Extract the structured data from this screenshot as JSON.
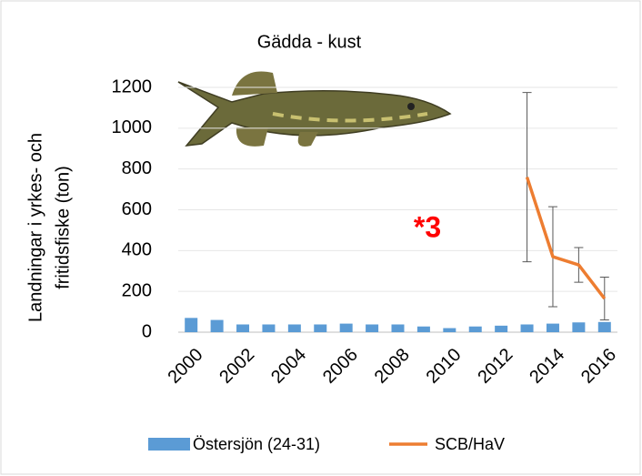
{
  "chart_data": {
    "type": "bar",
    "title": "Gädda - kust",
    "ylabel": [
      "Landningar i yrkes- och",
      "fritidsfiske (ton)"
    ],
    "annotation": "*3",
    "categories": [
      "2000",
      null,
      "2002",
      null,
      "2004",
      null,
      "2006",
      null,
      "2008",
      null,
      "2010",
      null,
      "2012",
      null,
      "2014",
      null,
      "2016"
    ],
    "series": [
      {
        "name": "Östersjön (24-31)",
        "type": "bar",
        "color": "#5b9bd5",
        "values": [
          70,
          60,
          38,
          38,
          38,
          38,
          42,
          38,
          38,
          28,
          20,
          28,
          32,
          38,
          42,
          48,
          50
        ]
      },
      {
        "name": "SCB/HaV",
        "type": "line",
        "color": "#ed7d31",
        "values": [
          null,
          null,
          null,
          null,
          null,
          null,
          null,
          null,
          null,
          null,
          null,
          null,
          null,
          760,
          370,
          330,
          165
        ],
        "errors": [
          null,
          null,
          null,
          null,
          null,
          null,
          null,
          null,
          null,
          null,
          null,
          null,
          null,
          415,
          245,
          85,
          105
        ]
      }
    ],
    "ylim": [
      0,
      1200
    ],
    "yticks": [
      0,
      200,
      400,
      600,
      800,
      1000,
      1200
    ],
    "grid": true
  }
}
